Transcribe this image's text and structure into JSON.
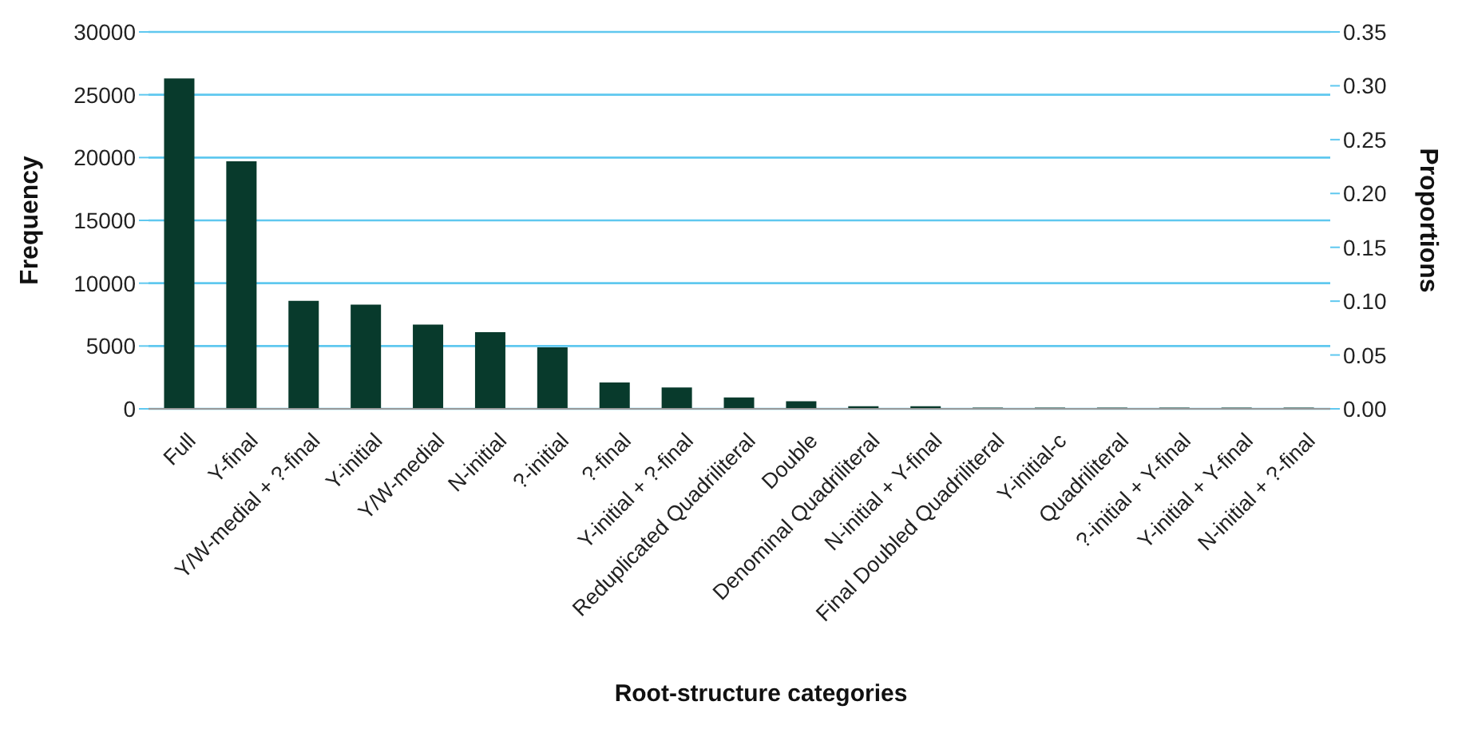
{
  "chart_data": {
    "type": "bar",
    "xlabel": "Root-structure categories",
    "ylabel": "Frequency",
    "y2label": "Proportions",
    "categories": [
      "Full",
      "Y-final",
      "Y/W-medial + ?-final",
      "Y-initial",
      "Y/W-medial",
      "N-initial",
      "?-initial",
      "?-final",
      "Y-initial + ?-final",
      "Reduplicated Quadriliteral",
      "Double",
      "Denominal Quadriliteral",
      "N-initial + Y-final",
      "Final Doubled Quadriliteral",
      "Y-initial-c",
      "Quadriliteral",
      "?-initial + Y-final",
      "Y-initial + Y-final",
      "N-initial + ?-final"
    ],
    "series": [
      {
        "color": "#083a2c",
        "values": [
          26300,
          19700,
          8600,
          8300,
          6700,
          6100,
          4900,
          2100,
          1700,
          900,
          600,
          200,
          200,
          100,
          100,
          100,
          100,
          100,
          100
        ]
      }
    ],
    "ylim": [
      0,
      30000
    ],
    "yticks": [
      0,
      5000,
      10000,
      15000,
      20000,
      25000,
      30000
    ],
    "y2lim": [
      0,
      0.35
    ],
    "y2ticks": [
      {
        "value": 0,
        "label": "0.00"
      },
      {
        "value": 0.05,
        "label": "0.05"
      },
      {
        "value": 0.1,
        "label": "0.10"
      },
      {
        "value": 0.15,
        "label": "0.15"
      },
      {
        "value": 0.2,
        "label": "0.20"
      },
      {
        "value": 0.25,
        "label": "0.25"
      },
      {
        "value": 0.3,
        "label": "0.30"
      },
      {
        "value": 0.35,
        "label": "0.35"
      }
    ],
    "grid": "y",
    "legend": false
  }
}
